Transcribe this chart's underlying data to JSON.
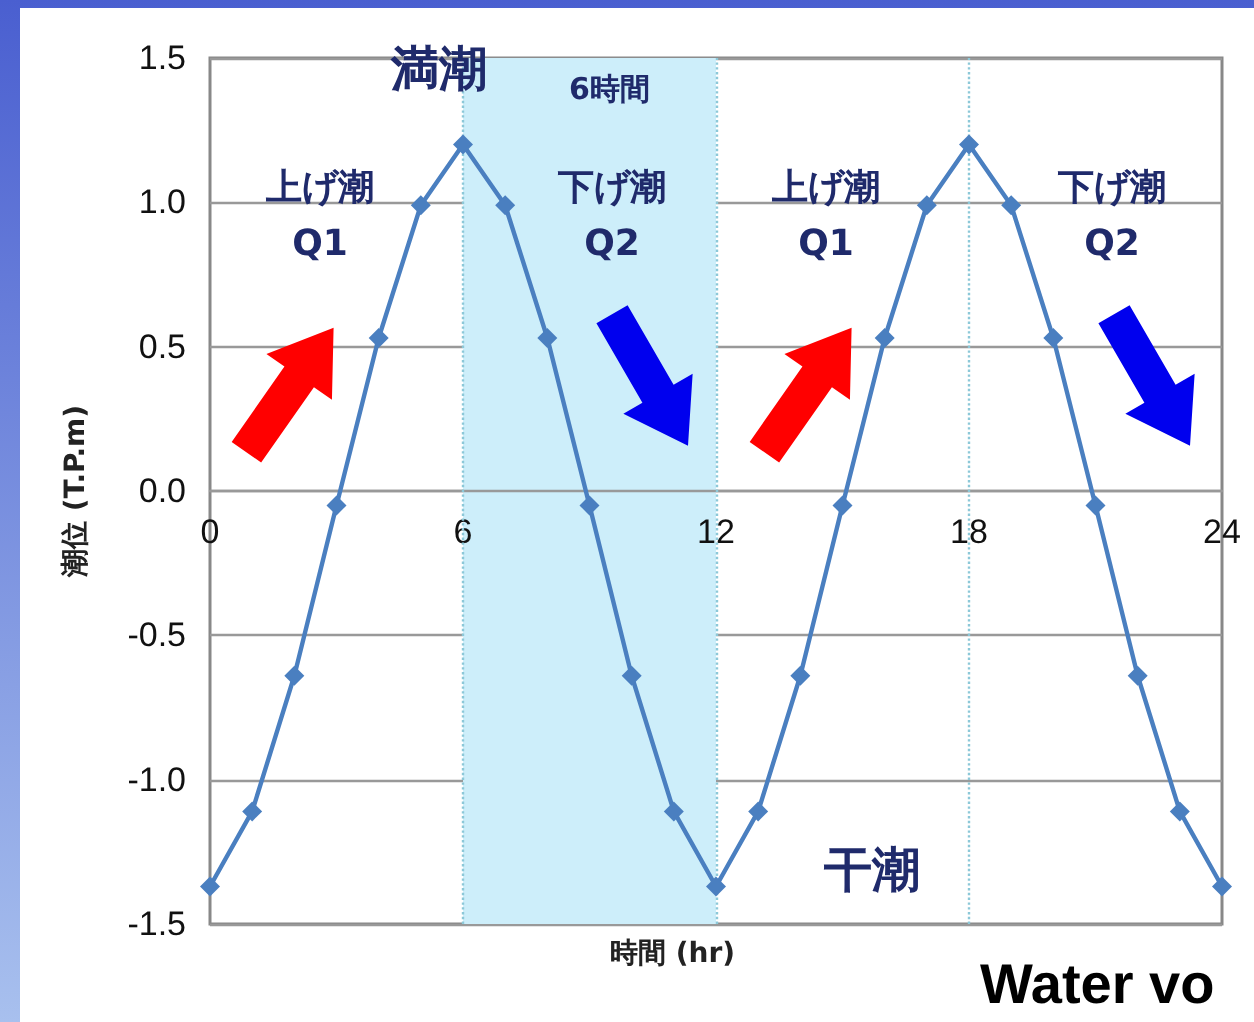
{
  "chart_data": {
    "type": "line",
    "xlabel": "時間 (hr)",
    "ylabel": "潮位 (T.P.m)",
    "x": [
      0,
      1,
      2,
      3,
      4,
      5,
      6,
      7,
      8,
      9,
      10,
      11,
      12,
      13,
      14,
      15,
      16,
      17,
      18,
      19,
      20,
      21,
      22,
      23,
      24
    ],
    "series": [
      {
        "color": "#4a7fc0",
        "values": [
          -1.37,
          -1.11,
          -0.64,
          -0.05,
          0.53,
          0.99,
          1.2,
          0.99,
          0.53,
          -0.05,
          -0.64,
          -1.11,
          -1.37,
          -1.11,
          -0.64,
          -0.05,
          0.53,
          0.99,
          1.2,
          0.99,
          0.53,
          -0.05,
          -0.64,
          -1.11,
          -1.37
        ]
      }
    ],
    "xlim": [
      0,
      24
    ],
    "xticks": [
      0,
      6,
      12,
      18,
      24
    ],
    "ylim": [
      -1.5,
      1.5
    ],
    "yticks": [
      -1.5,
      {
        "value": -1,
        "label": "-1.0"
      },
      -0.5,
      {
        "value": 0,
        "label": "0.0"
      },
      0.5,
      {
        "value": 1,
        "label": "1.0"
      },
      1.5
    ],
    "grid": "y",
    "marker": "diamond",
    "line_style": "solid",
    "ref_lines": [
      {
        "axis": "x",
        "value": 6,
        "color": "#8cc8d8",
        "line_style": "dotted"
      },
      {
        "axis": "x",
        "value": 12,
        "color": "#8cc8d8",
        "line_style": "dotted"
      },
      {
        "axis": "x",
        "value": 18,
        "color": "#8cc8d8",
        "line_style": "dotted"
      }
    ],
    "bands": [
      {
        "axis": "x",
        "from": 6,
        "to": 12,
        "label": "6時間",
        "color": "#cdeefa"
      }
    ],
    "annotations": [
      {
        "text": "満潮",
        "x": 6,
        "y": 1.2
      },
      {
        "text": "干潮",
        "x": 12,
        "y": -1.37
      },
      "上げ潮\nQ1",
      "下げ潮\nQ2",
      "上げ潮\nQ1",
      "下げ潮\nQ2",
      "Water vo"
    ]
  }
}
